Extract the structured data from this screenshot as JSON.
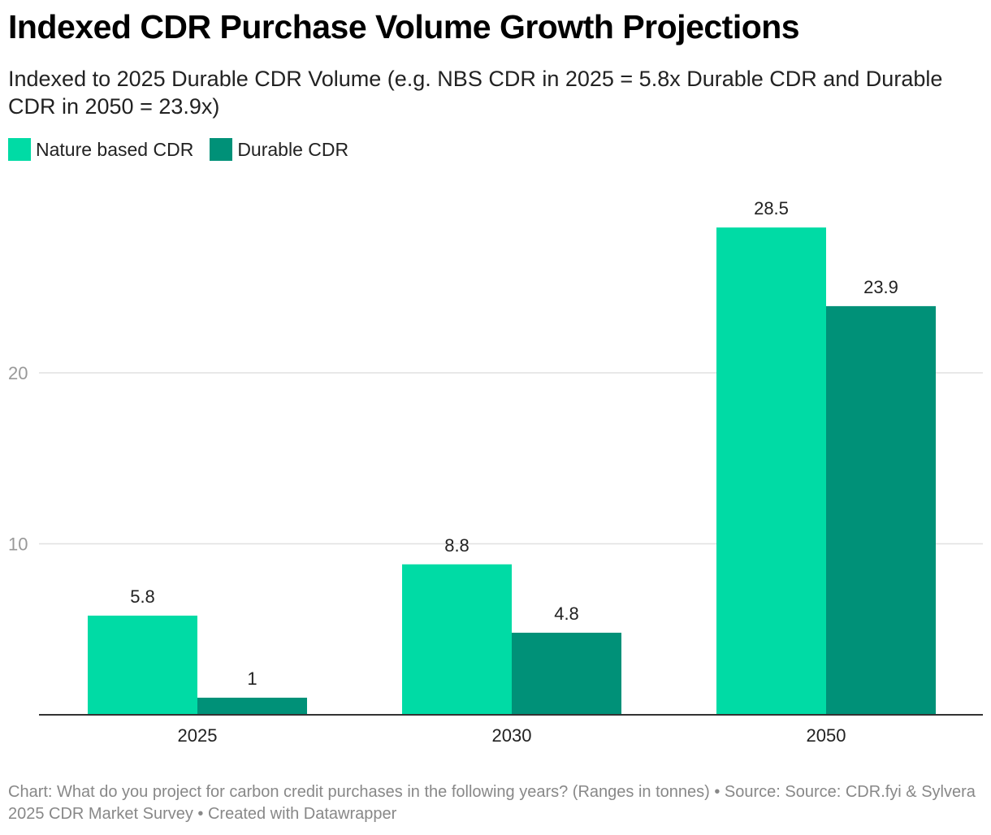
{
  "title": "Indexed CDR Purchase Volume Growth Projections",
  "subtitle": "Indexed to 2025 Durable CDR Volume (e.g. NBS CDR in 2025 = 5.8x Durable CDR and Durable CDR in 2050 = 23.9x)",
  "footer": "Chart: What do you project for carbon credit purchases in the following years? (Ranges in tonnes) • Source: Source: CDR.fyi & Sylvera 2025 CDR Market Survey • Created with Datawrapper",
  "colors": {
    "nature": "#00dba5",
    "durable": "#009178"
  },
  "chart_data": {
    "type": "bar",
    "title": "Indexed CDR Purchase Volume Growth Projections",
    "subtitle": "Indexed to 2025 Durable CDR Volume (e.g. NBS CDR in 2025 = 5.8x Durable CDR and Durable CDR in 2050 = 23.9x)",
    "categories": [
      "2025",
      "2030",
      "2050"
    ],
    "series": [
      {
        "name": "Nature based CDR",
        "values": [
          5.8,
          8.8,
          28.5
        ],
        "labels": [
          "5.8",
          "8.8",
          "28.5"
        ]
      },
      {
        "name": "Durable CDR",
        "values": [
          1,
          4.8,
          23.9
        ],
        "labels": [
          "1",
          "4.8",
          "23.9"
        ]
      }
    ],
    "yticks": [
      10,
      20
    ],
    "ytick_labels": [
      "10",
      "20"
    ],
    "ylim": [
      0,
      30
    ],
    "grid": true,
    "legend": "top-left"
  }
}
